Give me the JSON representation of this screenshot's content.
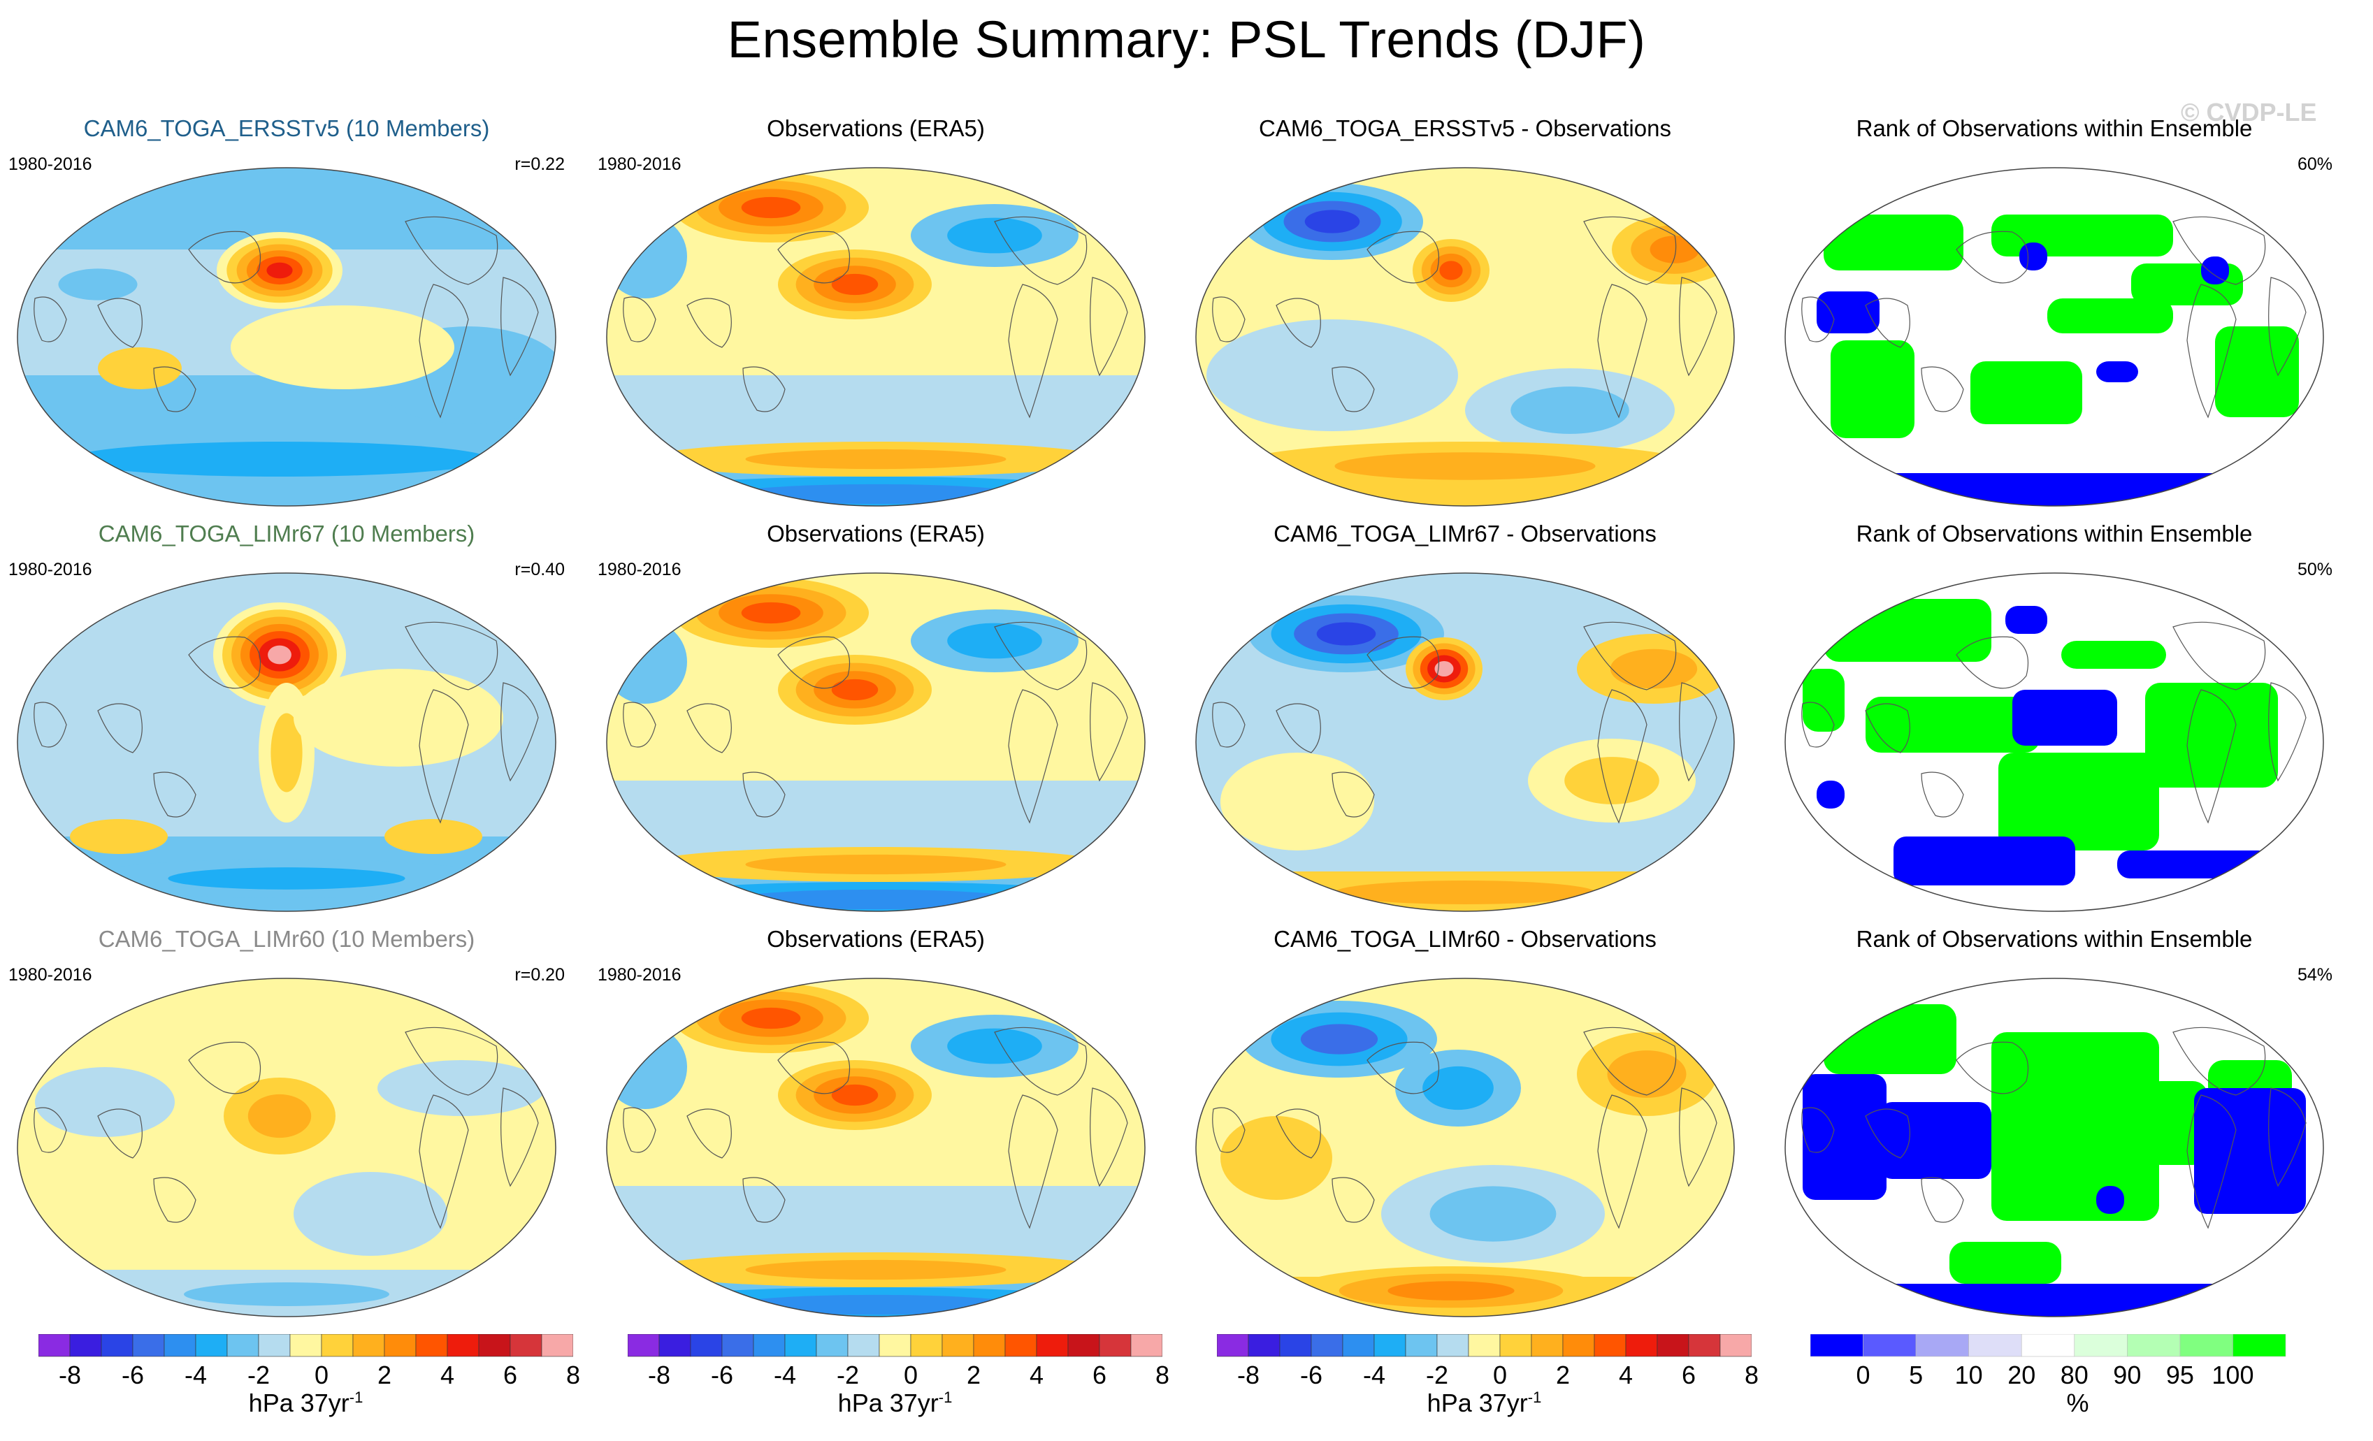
{
  "title": "Ensemble Summary: PSL Trends (DJF)",
  "watermark": "© CVDP-LE",
  "rows": [
    {
      "model": {
        "title": "CAM6_TOGA_ERSSTv5 (10 Members)",
        "years": "1980-2016",
        "corr": "r=0.22",
        "title_color": "#1f5f8b"
      },
      "obs": {
        "title": "Observations (ERA5)",
        "years": "1980-2016"
      },
      "diff": {
        "title": "CAM6_TOGA_ERSSTv5 - Observations"
      },
      "rank": {
        "title": "Rank of Observations within Ensemble",
        "pct": "60%"
      }
    },
    {
      "model": {
        "title": "CAM6_TOGA_LIMr67 (10 Members)",
        "years": "1980-2016",
        "corr": "r=0.40",
        "title_color": "#4f7d4f"
      },
      "obs": {
        "title": "Observations (ERA5)",
        "years": "1980-2016"
      },
      "diff": {
        "title": "CAM6_TOGA_LIMr67 - Observations"
      },
      "rank": {
        "title": "Rank of Observations within Ensemble",
        "pct": "50%"
      }
    },
    {
      "model": {
        "title": "CAM6_TOGA_LIMr60 (10 Members)",
        "years": "1980-2016",
        "corr": "r=0.20",
        "title_color": "#8a8a8a"
      },
      "obs": {
        "title": "Observations (ERA5)",
        "years": "1980-2016"
      },
      "diff": {
        "title": "CAM6_TOGA_LIMr60 - Observations"
      },
      "rank": {
        "title": "Rank of Observations within Ensemble",
        "pct": "54%"
      }
    }
  ],
  "colorbar_psl": {
    "label": "hPa 37yr",
    "label_exp": "-1",
    "colors": [
      "#8a2be2",
      "#3a1ee0",
      "#2a44e6",
      "#3a6ee8",
      "#2d8ff0",
      "#1eaef5",
      "#6dc4f0",
      "#b5dcef",
      "#fff7a0",
      "#ffd23a",
      "#ffb01e",
      "#ff8c0a",
      "#ff5500",
      "#ee1c0c",
      "#c8141a",
      "#d6353a",
      "#f7a8a8"
    ],
    "ticks": [
      "-8",
      "-6",
      "-4",
      "-2",
      "0",
      "2",
      "4",
      "6",
      "8"
    ]
  },
  "colorbar_rank": {
    "label": "%",
    "colors": [
      "#0000ff",
      "#5a5aff",
      "#a8a8f5",
      "#dedef8",
      "#ffffff",
      "#dbffdb",
      "#b4ffb4",
      "#80ff80",
      "#00ff00"
    ],
    "ticks": [
      "0",
      "5",
      "10",
      "20",
      "80",
      "90",
      "95",
      "100"
    ]
  },
  "palette": {
    "ocean_light": "#b5dcef",
    "pale_yellow": "#fff7a0",
    "rank_green": "#00ff00",
    "rank_blue": "#0000ff"
  }
}
